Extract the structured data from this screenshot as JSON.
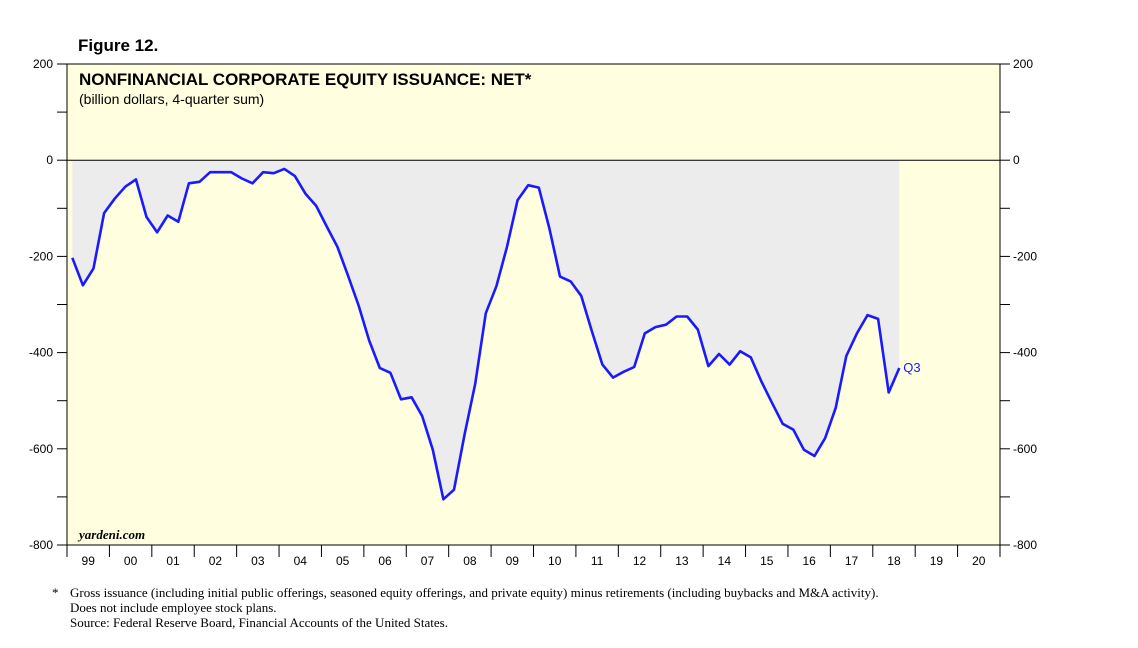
{
  "figure_label": "Figure 12.",
  "chart_data": {
    "type": "area",
    "title": "NONFINANCIAL CORPORATE EQUITY ISSUANCE: NET*",
    "subtitle": "(billion dollars, 4-quarter sum)",
    "watermark": "yardeni.com",
    "ylim": [
      -800,
      200
    ],
    "yticks": [
      200,
      0,
      -200,
      -400,
      -600,
      -800
    ],
    "xlim": [
      1999.0,
      2021.0
    ],
    "xtick_labels": [
      "99",
      "00",
      "01",
      "02",
      "03",
      "04",
      "05",
      "06",
      "07",
      "08",
      "09",
      "10",
      "11",
      "12",
      "13",
      "14",
      "15",
      "16",
      "17",
      "18",
      "19",
      "20"
    ],
    "line_color": "#1a1aff",
    "fill_color": "#ececec",
    "background_color": "#ffffe0",
    "end_label": "Q3",
    "series": [
      {
        "name": "Net equity issuance",
        "x": [
          1999.125,
          1999.375,
          1999.625,
          1999.875,
          2000.125,
          2000.375,
          2000.625,
          2000.875,
          2001.125,
          2001.375,
          2001.625,
          2001.875,
          2002.125,
          2002.375,
          2002.625,
          2002.875,
          2003.125,
          2003.375,
          2003.625,
          2003.875,
          2004.125,
          2004.375,
          2004.625,
          2004.875,
          2005.125,
          2005.375,
          2005.625,
          2005.875,
          2006.125,
          2006.375,
          2006.625,
          2006.875,
          2007.125,
          2007.375,
          2007.625,
          2007.875,
          2008.125,
          2008.375,
          2008.625,
          2008.875,
          2009.125,
          2009.375,
          2009.625,
          2009.875,
          2010.125,
          2010.375,
          2010.625,
          2010.875,
          2011.125,
          2011.375,
          2011.625,
          2011.875,
          2012.125,
          2012.375,
          2012.625,
          2012.875,
          2013.125,
          2013.375,
          2013.625,
          2013.875,
          2014.125,
          2014.375,
          2014.625,
          2014.875,
          2015.125,
          2015.375,
          2015.625,
          2015.875,
          2016.125,
          2016.375,
          2016.625,
          2016.875,
          2017.125,
          2017.375,
          2017.625,
          2017.875,
          2018.125,
          2018.375,
          2018.625
        ],
        "values": [
          -203,
          -260,
          -225,
          -110,
          -80,
          -55,
          -40,
          -118,
          -150,
          -115,
          -128,
          -48,
          -45,
          -25,
          -25,
          -25,
          -38,
          -48,
          -25,
          -27,
          -18,
          -33,
          -70,
          -95,
          -138,
          -180,
          -240,
          -302,
          -375,
          -432,
          -442,
          -497,
          -493,
          -532,
          -602,
          -705,
          -685,
          -570,
          -465,
          -318,
          -262,
          -180,
          -83,
          -52,
          -57,
          -142,
          -242,
          -252,
          -282,
          -355,
          -425,
          -452,
          -440,
          -430,
          -360,
          -347,
          -342,
          -325,
          -325,
          -352,
          -428,
          -403,
          -425,
          -397,
          -410,
          -460,
          -505,
          -548,
          -560,
          -602,
          -615,
          -578,
          -515,
          -407,
          -360,
          -322,
          -330,
          -483,
          -432
        ]
      }
    ]
  },
  "footnote": {
    "marker": "*",
    "line1": "Gross issuance (including initial public offerings, seasoned equity offerings, and private equity) minus retirements (including buybacks and M&A activity).",
    "line2": "Does not include employee stock plans.",
    "source": "Source: Federal Reserve Board, Financial Accounts of the United States."
  }
}
